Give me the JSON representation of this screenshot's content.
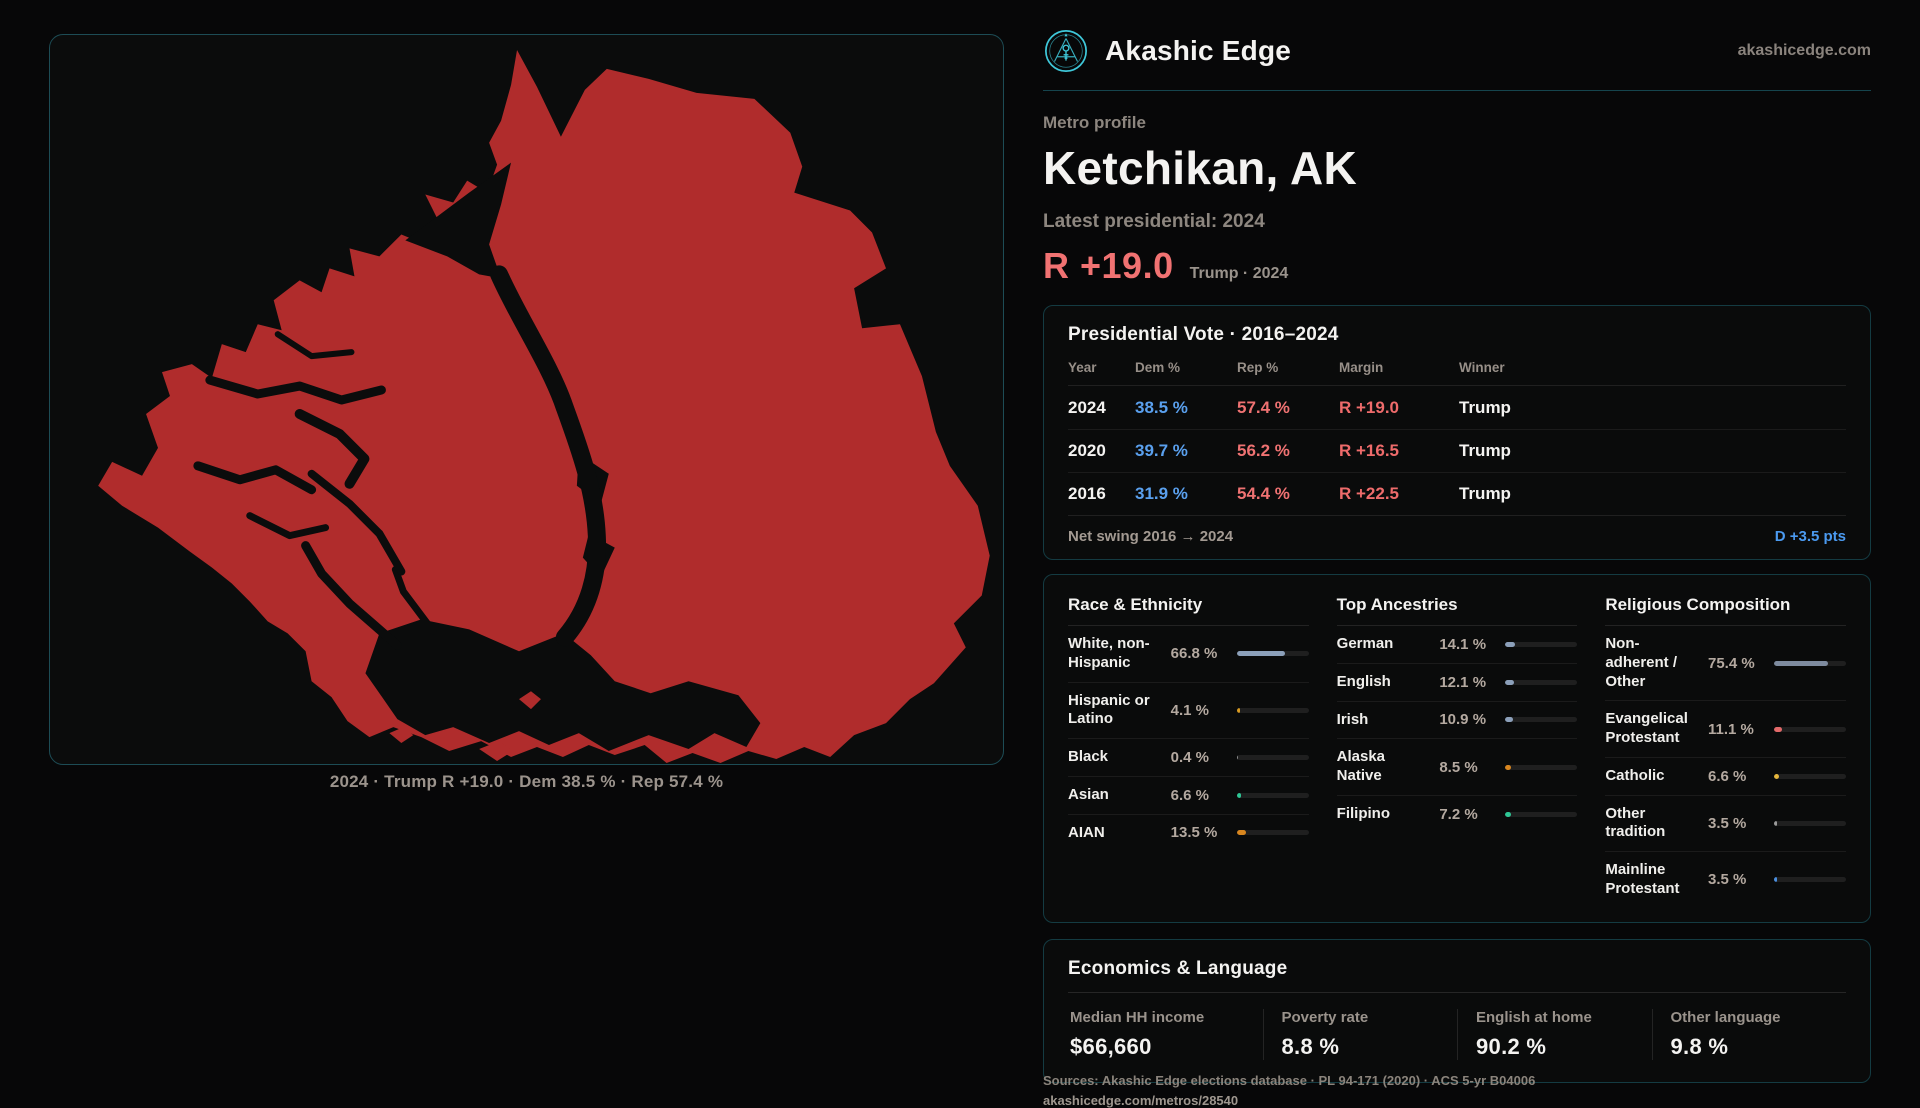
{
  "brand": {
    "name": "Akashic Edge",
    "domain": "akashicedge.com",
    "logo_icon": "akashic-emblem",
    "accent": "#3fc8da"
  },
  "profile": {
    "eyebrow": "Metro profile",
    "title": "Ketchikan, AK",
    "latest_label": "Latest presidential: 2024",
    "headline_margin": "R +19.0",
    "headline_context": "Trump · 2024"
  },
  "map": {
    "caption": "2024 · Trump R +19.0 · Dem 38.5 % · Rep 57.4 %",
    "land_color": "#b02c2c"
  },
  "vote_card": {
    "title": "Presidential Vote · 2016–2024",
    "columns": [
      "Year",
      "Dem %",
      "Rep %",
      "Margin",
      "Winner"
    ],
    "rows": [
      {
        "year": "2024",
        "dem": "38.5 %",
        "rep": "57.4 %",
        "margin": "R +19.0",
        "winner": "Trump"
      },
      {
        "year": "2020",
        "dem": "39.7 %",
        "rep": "56.2 %",
        "margin": "R +16.5",
        "winner": "Trump"
      },
      {
        "year": "2016",
        "dem": "31.9 %",
        "rep": "54.4 %",
        "margin": "R +22.5",
        "winner": "Trump"
      }
    ],
    "net_swing_label": "Net swing 2016 → 2024",
    "net_swing_value": "D +3.5 pts"
  },
  "demographics": {
    "race": {
      "title": "Race & Ethnicity",
      "rows": [
        {
          "label": "White, non-Hispanic",
          "value": "66.8 %",
          "pct": 66.8,
          "color": "#8ca0ba"
        },
        {
          "label": "Hispanic or Latino",
          "value": "4.1 %",
          "pct": 4.1,
          "color": "#d99b22"
        },
        {
          "label": "Black",
          "value": "0.4 %",
          "pct": 0.4,
          "color": "#8c8c8c"
        },
        {
          "label": "Asian",
          "value": "6.6 %",
          "pct": 6.6,
          "color": "#2ec695"
        },
        {
          "label": "AIAN",
          "value": "13.5 %",
          "pct": 13.5,
          "color": "#d8861f"
        }
      ]
    },
    "ancestries": {
      "title": "Top Ancestries",
      "rows": [
        {
          "label": "German",
          "value": "14.1 %",
          "pct": 14.1,
          "color": "#8ca0ba"
        },
        {
          "label": "English",
          "value": "12.1 %",
          "pct": 12.1,
          "color": "#8ca0ba"
        },
        {
          "label": "Irish",
          "value": "10.9 %",
          "pct": 10.9,
          "color": "#8ca0ba"
        },
        {
          "label": "Alaska Native",
          "value": "8.5 %",
          "pct": 8.5,
          "color": "#d8861f"
        },
        {
          "label": "Filipino",
          "value": "7.2 %",
          "pct": 7.2,
          "color": "#2ec695"
        }
      ]
    },
    "religion": {
      "title": "Religious Composition",
      "rows": [
        {
          "label": "Non-adherent / Other",
          "value": "75.4 %",
          "pct": 75.4,
          "color": "#7e8b9f"
        },
        {
          "label": "Evangelical Protestant",
          "value": "11.1 %",
          "pct": 11.1,
          "color": "#e36a6a"
        },
        {
          "label": "Catholic",
          "value": "6.6 %",
          "pct": 6.6,
          "color": "#e5b63c"
        },
        {
          "label": "Other tradition",
          "value": "3.5 %",
          "pct": 3.5,
          "color": "#9b9b9b"
        },
        {
          "label": "Mainline Protestant",
          "value": "3.5 %",
          "pct": 3.5,
          "color": "#4a8fe0"
        }
      ]
    }
  },
  "economics": {
    "title": "Economics & Language",
    "stats": [
      {
        "label": "Median HH income",
        "value": "$66,660"
      },
      {
        "label": "Poverty rate",
        "value": "8.8 %"
      },
      {
        "label": "English at home",
        "value": "90.2 %"
      },
      {
        "label": "Other language",
        "value": "9.8 %"
      }
    ]
  },
  "footer": {
    "sources": "Sources: Akashic Edge elections database · PL 94-171 (2020) · ACS 5-yr B04006",
    "permalink": "akashicedge.com/metros/28540"
  }
}
